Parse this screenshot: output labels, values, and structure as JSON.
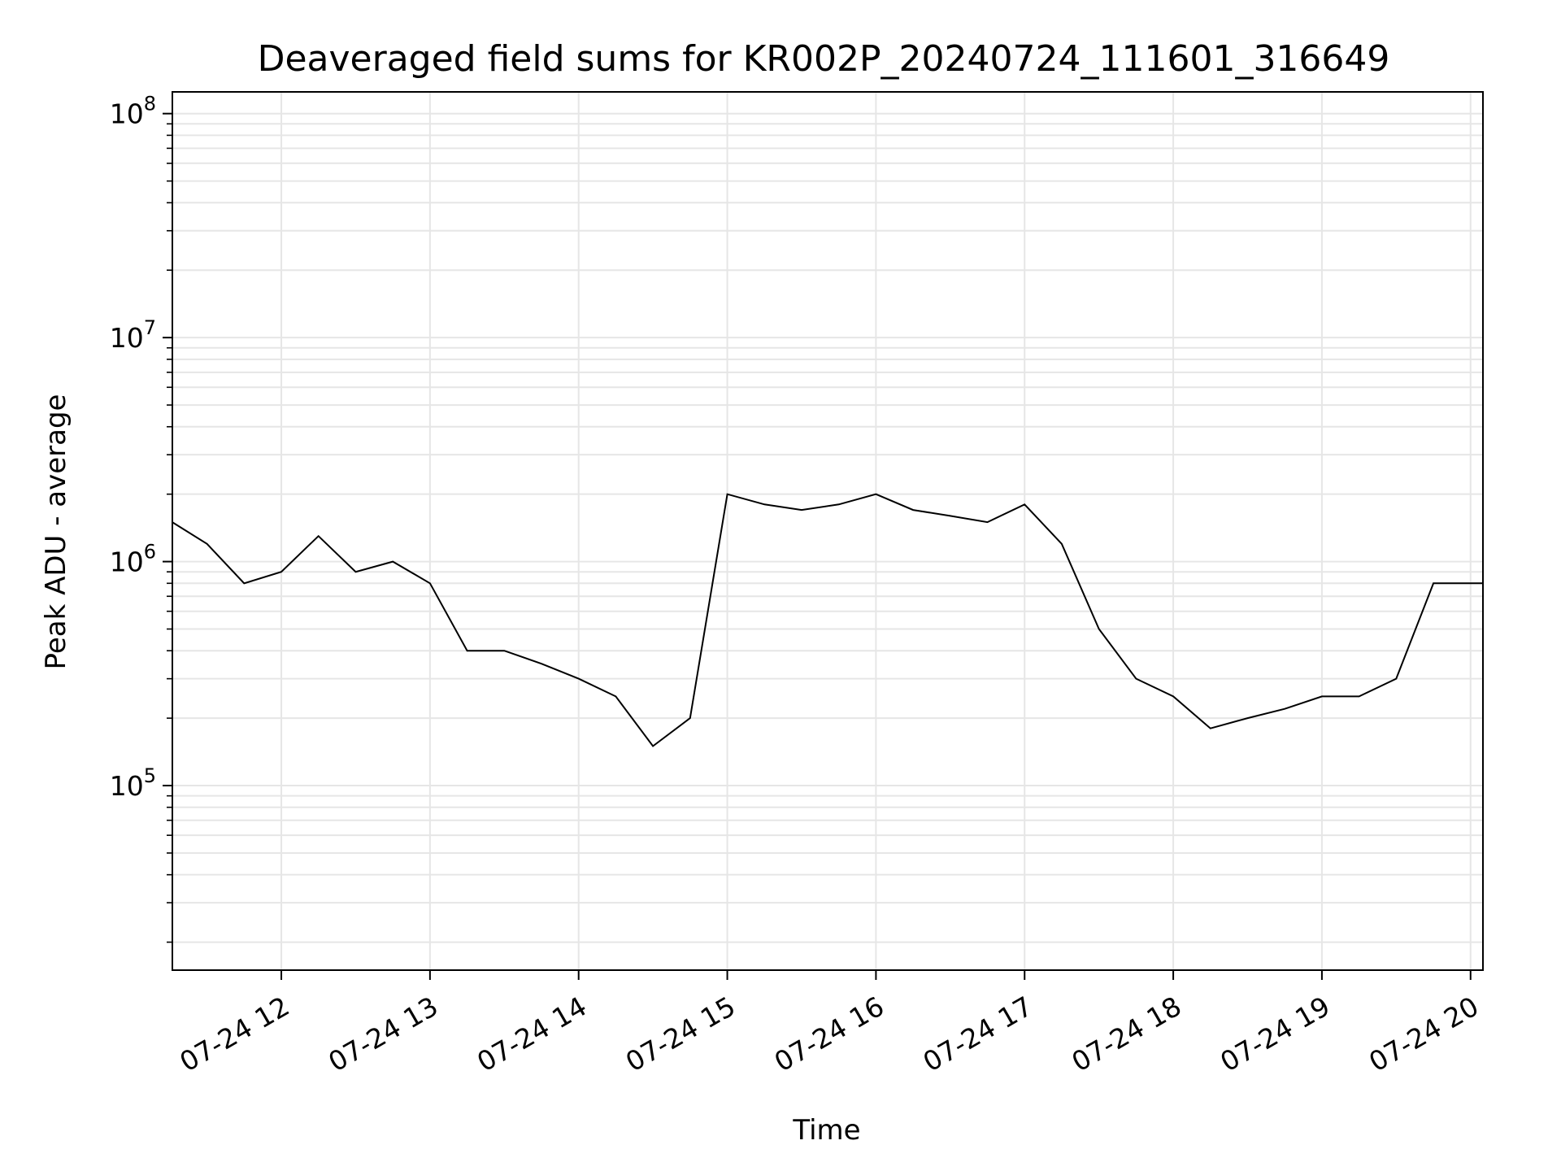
{
  "chart_data": {
    "type": "line",
    "title": "Deaveraged field sums for KR002P_20240724_111601_316649",
    "xlabel": "Time",
    "ylabel": "Peak ADU - average",
    "yscale": "log",
    "ylim": [
      15000,
      125000000
    ],
    "xlim": [
      "2024-07-24 11:16:01",
      "2024-07-24 20:05:00"
    ],
    "grid": true,
    "line_color": "#000000",
    "grid_color": "#e6e6e6",
    "x_ticks": [
      {
        "time": "2024-07-24 12:00",
        "label": "07-24 12"
      },
      {
        "time": "2024-07-24 13:00",
        "label": "07-24 13"
      },
      {
        "time": "2024-07-24 14:00",
        "label": "07-24 14"
      },
      {
        "time": "2024-07-24 15:00",
        "label": "07-24 15"
      },
      {
        "time": "2024-07-24 16:00",
        "label": "07-24 16"
      },
      {
        "time": "2024-07-24 17:00",
        "label": "07-24 17"
      },
      {
        "time": "2024-07-24 18:00",
        "label": "07-24 18"
      },
      {
        "time": "2024-07-24 19:00",
        "label": "07-24 19"
      },
      {
        "time": "2024-07-24 20:00",
        "label": "07-24 20"
      }
    ],
    "y_ticks": [
      {
        "value": 100000,
        "base": "10",
        "exp": "5"
      },
      {
        "value": 1000000,
        "base": "10",
        "exp": "6"
      },
      {
        "value": 10000000,
        "base": "10",
        "exp": "7"
      },
      {
        "value": 100000000,
        "base": "10",
        "exp": "8"
      }
    ],
    "series": [
      {
        "x": [
          "2024-07-24 11:16",
          "2024-07-24 11:30",
          "2024-07-24 11:45",
          "2024-07-24 12:00",
          "2024-07-24 12:15",
          "2024-07-24 12:30",
          "2024-07-24 12:45",
          "2024-07-24 13:00",
          "2024-07-24 13:15",
          "2024-07-24 13:30",
          "2024-07-24 13:45",
          "2024-07-24 14:00",
          "2024-07-24 14:15",
          "2024-07-24 14:30",
          "2024-07-24 14:45",
          "2024-07-24 15:00",
          "2024-07-24 15:15",
          "2024-07-24 15:30",
          "2024-07-24 15:45",
          "2024-07-24 16:00",
          "2024-07-24 16:15",
          "2024-07-24 16:30",
          "2024-07-24 16:45",
          "2024-07-24 17:00",
          "2024-07-24 17:15",
          "2024-07-24 17:30",
          "2024-07-24 17:45",
          "2024-07-24 18:00",
          "2024-07-24 18:15",
          "2024-07-24 18:30",
          "2024-07-24 18:45",
          "2024-07-24 19:00",
          "2024-07-24 19:15",
          "2024-07-24 19:30",
          "2024-07-24 19:45",
          "2024-07-24 20:00",
          "2024-07-24 20:05"
        ],
        "y": [
          1500000,
          1200000,
          800000,
          900000,
          1300000,
          900000,
          1000000,
          800000,
          400000,
          400000,
          350000,
          300000,
          250000,
          150000,
          200000,
          2000000,
          1800000,
          1700000,
          1800000,
          2000000,
          1700000,
          1600000,
          1500000,
          1800000,
          1200000,
          500000,
          300000,
          250000,
          180000,
          200000,
          220000,
          250000,
          250000,
          300000,
          800000,
          800000,
          800000
        ]
      }
    ]
  }
}
